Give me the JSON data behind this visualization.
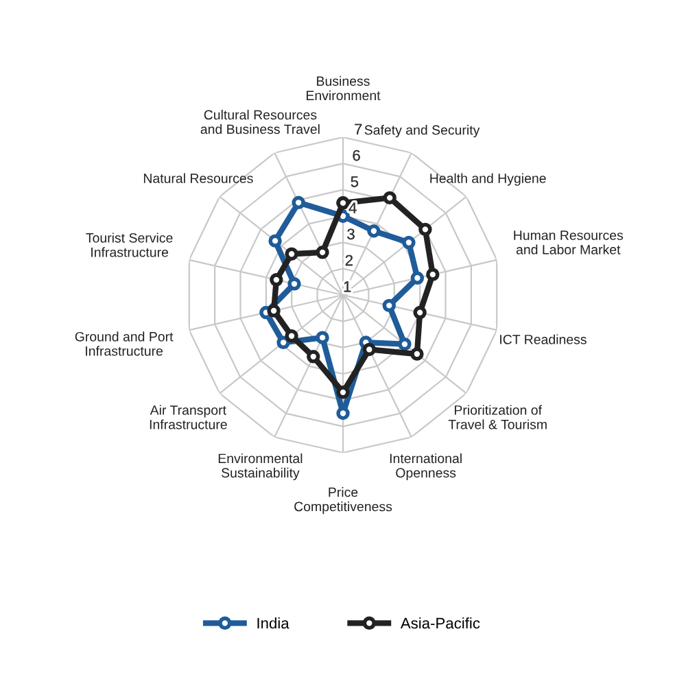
{
  "chart_data": {
    "type": "radar",
    "categories": [
      "Business\nEnvironment",
      "Safety and Security",
      "Health and Hygiene",
      "Human Resources\nand Labor Market",
      "ICT Readiness",
      "Prioritization of\nTravel & Tourism",
      "International\nOpenness",
      "Price\nCompetitiveness",
      "Environmental\nSustainability",
      "Air Transport\nInfrastructure",
      "Ground and Port\nInfrastructure",
      "Tourist Service\nInfrastructure",
      "Natural Resources",
      "Cultural Resources\nand Business Travel"
    ],
    "series": [
      {
        "name": "India",
        "color": "#1f5c99",
        "values": [
          4.0,
          3.7,
          4.2,
          3.9,
          2.8,
          4.0,
          3.0,
          5.5,
          2.8,
          3.9,
          4.0,
          2.9,
          4.3,
          4.9
        ]
      },
      {
        "name": "Asia-Pacific",
        "color": "#222222",
        "values": [
          4.5,
          5.1,
          5.0,
          4.5,
          4.0,
          4.6,
          3.3,
          4.7,
          3.6,
          3.5,
          3.7,
          3.6,
          3.5,
          2.8
        ]
      }
    ],
    "ylim": [
      1,
      7
    ],
    "yticks": [
      1,
      2,
      3,
      4,
      5,
      6,
      7
    ],
    "grid": true,
    "legend": "bottom",
    "marker": "circle",
    "line_style": "solid"
  }
}
